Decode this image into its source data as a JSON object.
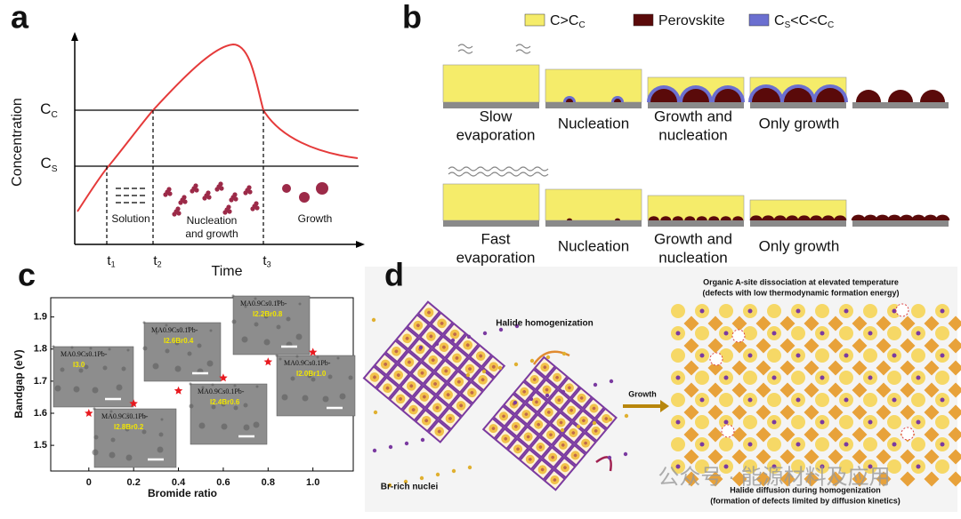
{
  "panel_a": {
    "label": "a",
    "y_axis": "Concentration",
    "x_axis": "Time",
    "levels": [
      {
        "main": "C",
        "sub": "C"
      },
      {
        "main": "C",
        "sub": "S"
      }
    ],
    "times": [
      {
        "main": "t",
        "sub": "1"
      },
      {
        "main": "t",
        "sub": "2"
      },
      {
        "main": "t",
        "sub": "3"
      }
    ],
    "regions": [
      [
        "Solution"
      ],
      [
        "Nucleation",
        "and growth"
      ],
      [
        "Growth"
      ]
    ]
  },
  "panel_b": {
    "label": "b",
    "legend": [
      {
        "color": "#f5ec6a",
        "segments": [
          {
            "t": "C>C"
          },
          {
            "t": "C",
            "sub": true
          }
        ]
      },
      {
        "color": "#5a0a0a",
        "segments": [
          {
            "t": "Perovskite"
          }
        ]
      },
      {
        "color": "#6b6fd0",
        "segments": [
          {
            "t": "C"
          },
          {
            "t": "S",
            "sub": true
          },
          {
            "t": "<C<C"
          },
          {
            "t": "C",
            "sub": true
          }
        ]
      }
    ],
    "rows": [
      {
        "condition": [
          "Slow",
          "evaporation"
        ],
        "stages": [
          [
            "Nucleation"
          ],
          [
            "Growth and",
            "nucleation"
          ],
          [
            "Only growth"
          ]
        ]
      },
      {
        "condition": [
          "Fast",
          "evaporation"
        ],
        "stages": [
          [
            "Nucleation"
          ],
          [
            "Growth and",
            "nucleation"
          ],
          [
            "Only growth"
          ]
        ]
      }
    ]
  },
  "chart_data": {
    "type": "scatter",
    "label": "c",
    "x_label": "Bromide ratio",
    "y_label": "Bandgap (eV)",
    "x": [
      0,
      0.2,
      0.4,
      0.6,
      0.8,
      1.0
    ],
    "values": [
      1.6,
      1.63,
      1.67,
      1.71,
      1.76,
      1.79
    ],
    "color": "#e8191f",
    "marker": "star",
    "xlim": [
      -0.17,
      1.18
    ],
    "ylim": [
      1.42,
      1.96
    ],
    "xticks": [
      0,
      0.2,
      0.4,
      0.6,
      0.8,
      {
        "value": 1,
        "label": "1.0"
      }
    ],
    "yticks": [
      1.5,
      1.6,
      1.7,
      1.8,
      1.9
    ],
    "insets": [
      {
        "top": "MA0.9Cs0.1Pb-",
        "bottom": "I3.0"
      },
      {
        "top": "MA0.9Cs0.1Pb-",
        "bottom": "I2.8Br0.2"
      },
      {
        "top": "MA0.9Cs0.1Pb-",
        "bottom": "I2.6Br0.4"
      },
      {
        "top": "MA0.9Cs0.1Pb-",
        "bottom": "I2.4Br0.6"
      },
      {
        "top": "MA0.9Cs0.1Pb-",
        "bottom": "I2.2Br0.8"
      },
      {
        "top": "MA0.9Cs0.1Pb-",
        "bottom": "I2.0Br1.0"
      }
    ]
  },
  "panel_d": {
    "label": "d",
    "top_note": [
      "Organic A-site dissociation at elevated temperature",
      "(defects with low thermodynamic formation energy)"
    ],
    "step": "Halide homogenization",
    "arrow_label": "Growth",
    "nuclei": "Br-rich nuclei",
    "bottom_note": [
      "Halide diffusion during homogenization",
      "(formation of defects limited by diffusion kinetics)"
    ]
  },
  "watermark": "公众号 · 能源材料及应用"
}
